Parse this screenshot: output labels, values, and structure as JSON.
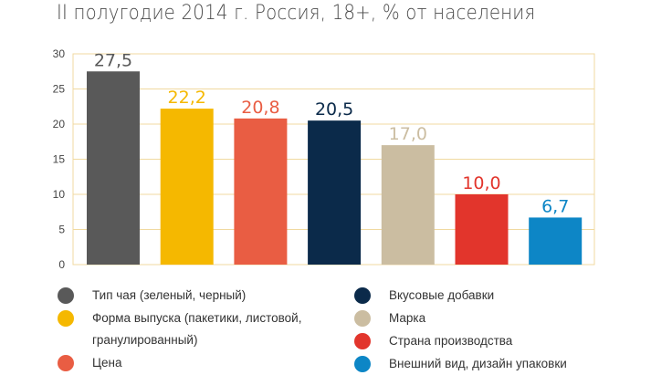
{
  "title": "II полугодие 2014 г. Россия, 18+, % от населения",
  "chart_data": {
    "type": "bar",
    "title": "II полугодие 2014 г. Россия, 18+, % от населения",
    "xlabel": "",
    "ylabel": "",
    "ylim": [
      0,
      30
    ],
    "yticks": [
      0,
      5,
      10,
      15,
      20,
      25,
      30
    ],
    "grid": true,
    "legend_position": "bottom",
    "categories": [
      "Тип чая (зеленый, черный)",
      "Форма выпуска (пакетики, листовой, гранулированный)",
      "Цена",
      "Вкусовые добавки",
      "Марка",
      "Страна производства",
      "Внешний вид, дизайн упаковки"
    ],
    "values": [
      27.5,
      22.2,
      20.8,
      20.5,
      17.0,
      10.0,
      6.7
    ],
    "value_labels": [
      "27,5",
      "22,2",
      "20,8",
      "20,5",
      "17,0",
      "10,0",
      "6,7"
    ],
    "colors": [
      "#595959",
      "#f5b800",
      "#e95d43",
      "#0b2a4a",
      "#cbbda1",
      "#e2352c",
      "#0d86c6"
    ]
  },
  "legend": [
    {
      "lines": [
        "Тип чая (зеленый, черный)"
      ],
      "color": "#595959"
    },
    {
      "lines": [
        "Форма выпуска (пакетики, листовой,",
        "гранулированный)"
      ],
      "color": "#f5b800"
    },
    {
      "lines": [
        "Цена"
      ],
      "color": "#e95d43"
    },
    {
      "lines": [
        "Вкусовые добавки"
      ],
      "color": "#0b2a4a"
    },
    {
      "lines": [
        "Марка"
      ],
      "color": "#cbbda1"
    },
    {
      "lines": [
        "Страна производства"
      ],
      "color": "#e2352c"
    },
    {
      "lines": [
        "Внешний вид, дизайн упаковки"
      ],
      "color": "#0d86c6"
    }
  ]
}
